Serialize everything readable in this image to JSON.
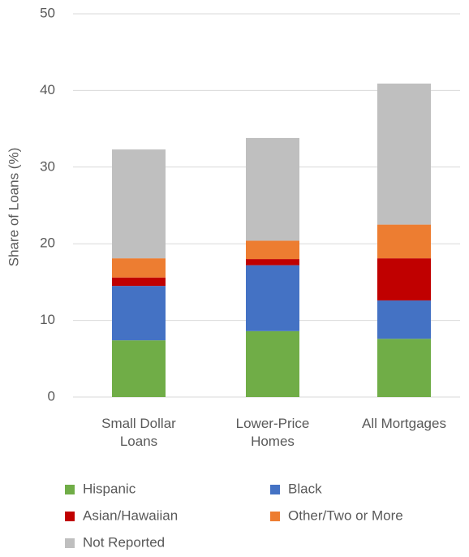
{
  "chart_data": {
    "type": "stacked_bar",
    "y_label": "Share of Loans (%)",
    "categories": [
      "Small Dollar Loans",
      "Lower-Price Homes",
      "All Mortgages"
    ],
    "series": [
      {
        "name": "Hispanic",
        "color": "#70ad47",
        "values": [
          7.4,
          8.6,
          7.6
        ]
      },
      {
        "name": "Black",
        "color": "#4472c4",
        "values": [
          7.1,
          8.6,
          5.0
        ]
      },
      {
        "name": "Asian/Hawaiian",
        "color": "#c00000",
        "values": [
          1.1,
          0.8,
          5.5
        ]
      },
      {
        "name": "Other/Two or More",
        "color": "#ed7d31",
        "values": [
          2.5,
          2.4,
          4.4
        ]
      },
      {
        "name": "Not Reported",
        "color": "#bfbfbf",
        "values": [
          14.2,
          13.4,
          18.4
        ]
      }
    ],
    "ylim": [
      0,
      50
    ],
    "yticks": [
      0,
      10,
      20,
      30,
      40,
      50
    ],
    "grid": true,
    "legend": "bottom"
  }
}
